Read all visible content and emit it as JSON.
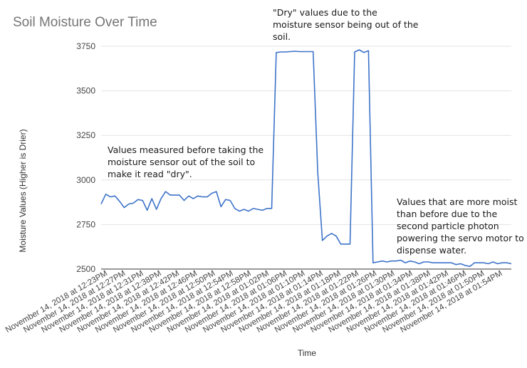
{
  "chart_data": {
    "type": "line",
    "title": "Soil Moisture Over Time",
    "xlabel": "Time",
    "ylabel": "Moisture Values (Higher is Drier)",
    "ylim": [
      2500,
      3750
    ],
    "yticks": [
      2500,
      2750,
      3000,
      3250,
      3500,
      3750
    ],
    "grid": true,
    "legend": "none",
    "color": "#3d73c9",
    "x_tick_labels": [
      "November 14, 2018 at 12:23PM",
      "November 14, 2018 at 12:27PM",
      "November 14, 2018 at 12:31PM",
      "November 14, 2018 at 12:38PM",
      "November 14, 2018 at 12:42PM",
      "November 14, 2018 at 12:46PM",
      "November 14, 2018 at 12:50PM",
      "November 14, 2018 at 12:54PM",
      "November 14, 2018 at 12:58PM",
      "November 14, 2018 at 01:02PM",
      "November 14, 2018 at 01:06PM",
      "November 14, 2018 at 01:10PM",
      "November 14, 2018 at 01:14PM",
      "November 14, 2018 at 01:18PM",
      "November 14, 2018 at 01:22PM",
      "November 14, 2018 at 01:26PM",
      "November 14, 2018 at 01:30PM",
      "November 14, 2018 at 01:34PM",
      "November 14, 2018 at 01:38PM",
      "November 14, 2018 at 01:42PM",
      "November 14, 2018 at 01:46PM",
      "November 14, 2018 at 01:50PM",
      "November 14, 2018 at 01:54PM"
    ],
    "values": [
      2865,
      2920,
      2905,
      2910,
      2880,
      2845,
      2865,
      2870,
      2890,
      2885,
      2830,
      2895,
      2835,
      2895,
      2935,
      2915,
      2915,
      2915,
      2885,
      2910,
      2895,
      2910,
      2905,
      2905,
      2925,
      2935,
      2850,
      2890,
      2885,
      2840,
      2825,
      2835,
      2825,
      2840,
      2835,
      2830,
      2840,
      2840,
      3715,
      3718,
      3718,
      3720,
      3722,
      3720,
      3720,
      3720,
      3720,
      3040,
      2660,
      2685,
      2700,
      2685,
      2640,
      2640,
      2640,
      3718,
      3730,
      3715,
      3725,
      2535,
      2540,
      2545,
      2540,
      2545,
      2545,
      2550,
      2535,
      2545,
      2540,
      2530,
      2540,
      2540,
      2535,
      2535,
      2535,
      2535,
      2535,
      2525,
      2530,
      2520,
      2515,
      2535,
      2535,
      2535,
      2530,
      2540,
      2530,
      2535,
      2535,
      2530
    ],
    "annotations": [
      {
        "text": [
          "Values measured before taking the",
          "moisture sensor out of the soil to",
          "make it read \"dry\"."
        ]
      },
      {
        "text": [
          "\"Dry\" values due to the",
          "moisture sensor being out of the",
          "soil."
        ]
      },
      {
        "text": [
          "Values that are more moist",
          "than before due to the",
          "second particle photon",
          "powering the servo motor to",
          "dispense water."
        ]
      }
    ]
  }
}
